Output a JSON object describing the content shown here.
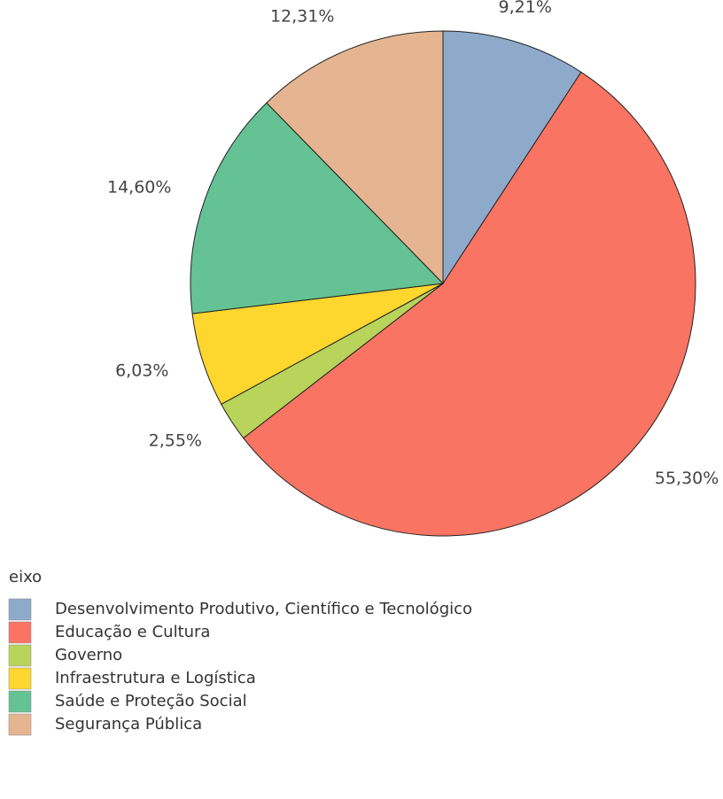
{
  "chart_data": {
    "type": "pie",
    "categories": [
      "Desenvolvimento Produtivo, Científico e Tecnológico",
      "Educação e Cultura",
      "Governo",
      "Infraestrutura e Logística",
      "Saúde e Proteção Social",
      "Segurança Pública"
    ],
    "values": [
      9.21,
      55.3,
      2.55,
      6.03,
      14.6,
      12.31
    ],
    "value_labels": [
      "9,21%",
      "55,30%",
      "2,55%",
      "6,03%",
      "14,60%",
      "12,31%"
    ],
    "colors": [
      "#8eaacb",
      "#f97462",
      "#b8d45a",
      "#fdd62e",
      "#65c294",
      "#e5b591"
    ],
    "legend_title": "eixo"
  }
}
